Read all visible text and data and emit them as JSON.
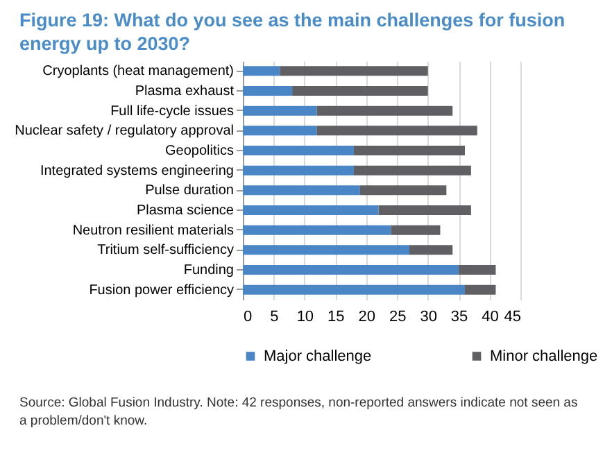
{
  "chart_data": {
    "type": "bar",
    "title": "Figure 19: What do you see as the main challenges for fusion energy up to 2030?",
    "orientation": "horizontal",
    "stacked": true,
    "categories": [
      "Cryoplants (heat management)",
      "Plasma exhaust",
      "Full life-cycle issues",
      "Nuclear safety / regulatory approval",
      "Geopolitics",
      "Integrated systems engineering",
      "Pulse duration",
      "Plasma science",
      "Neutron resilient materials",
      "Tritium self-sufficiency",
      "Funding",
      "Fusion power efficiency"
    ],
    "series": [
      {
        "name": "Major challenge",
        "color": "#4a86c5",
        "values": [
          6,
          8,
          12,
          12,
          18,
          18,
          19,
          22,
          24,
          27,
          35,
          36
        ]
      },
      {
        "name": "Minor challenge",
        "color": "#606064",
        "values": [
          24,
          22,
          22,
          26,
          18,
          19,
          14,
          15,
          8,
          7,
          6,
          5
        ]
      }
    ],
    "xlim": [
      0,
      45
    ],
    "xticks": [
      0,
      5,
      10,
      15,
      20,
      25,
      30,
      35,
      40,
      45
    ],
    "grid": "x",
    "legend": "bottom",
    "annotations": [
      "Source: Global Fusion Industry. Note: 42 responses, non-reported answers indicate not seen as a problem/don't know."
    ]
  }
}
